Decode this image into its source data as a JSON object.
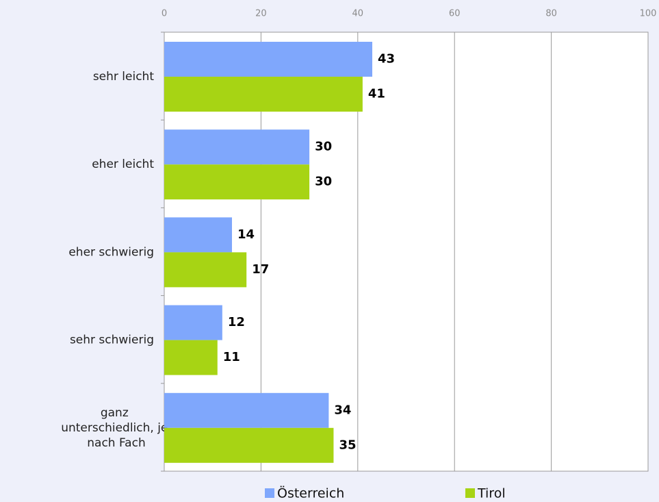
{
  "chart_data": {
    "type": "barh",
    "categories": [
      "sehr leicht",
      "eher leicht",
      "eher schwierig",
      "sehr schwierig",
      "ganz unterschiedlich, je nach Fach"
    ],
    "series": [
      {
        "name": "Österreich",
        "color": "#7fa7fc",
        "values": [
          43,
          30,
          14,
          12,
          34
        ]
      },
      {
        "name": "Tirol",
        "color": "#a7d414",
        "values": [
          41,
          30,
          17,
          11,
          35
        ]
      }
    ],
    "xlim": [
      0,
      100
    ],
    "xticks": [
      0,
      20,
      40,
      60,
      80,
      100
    ],
    "grid": true,
    "legend": "bottom"
  }
}
